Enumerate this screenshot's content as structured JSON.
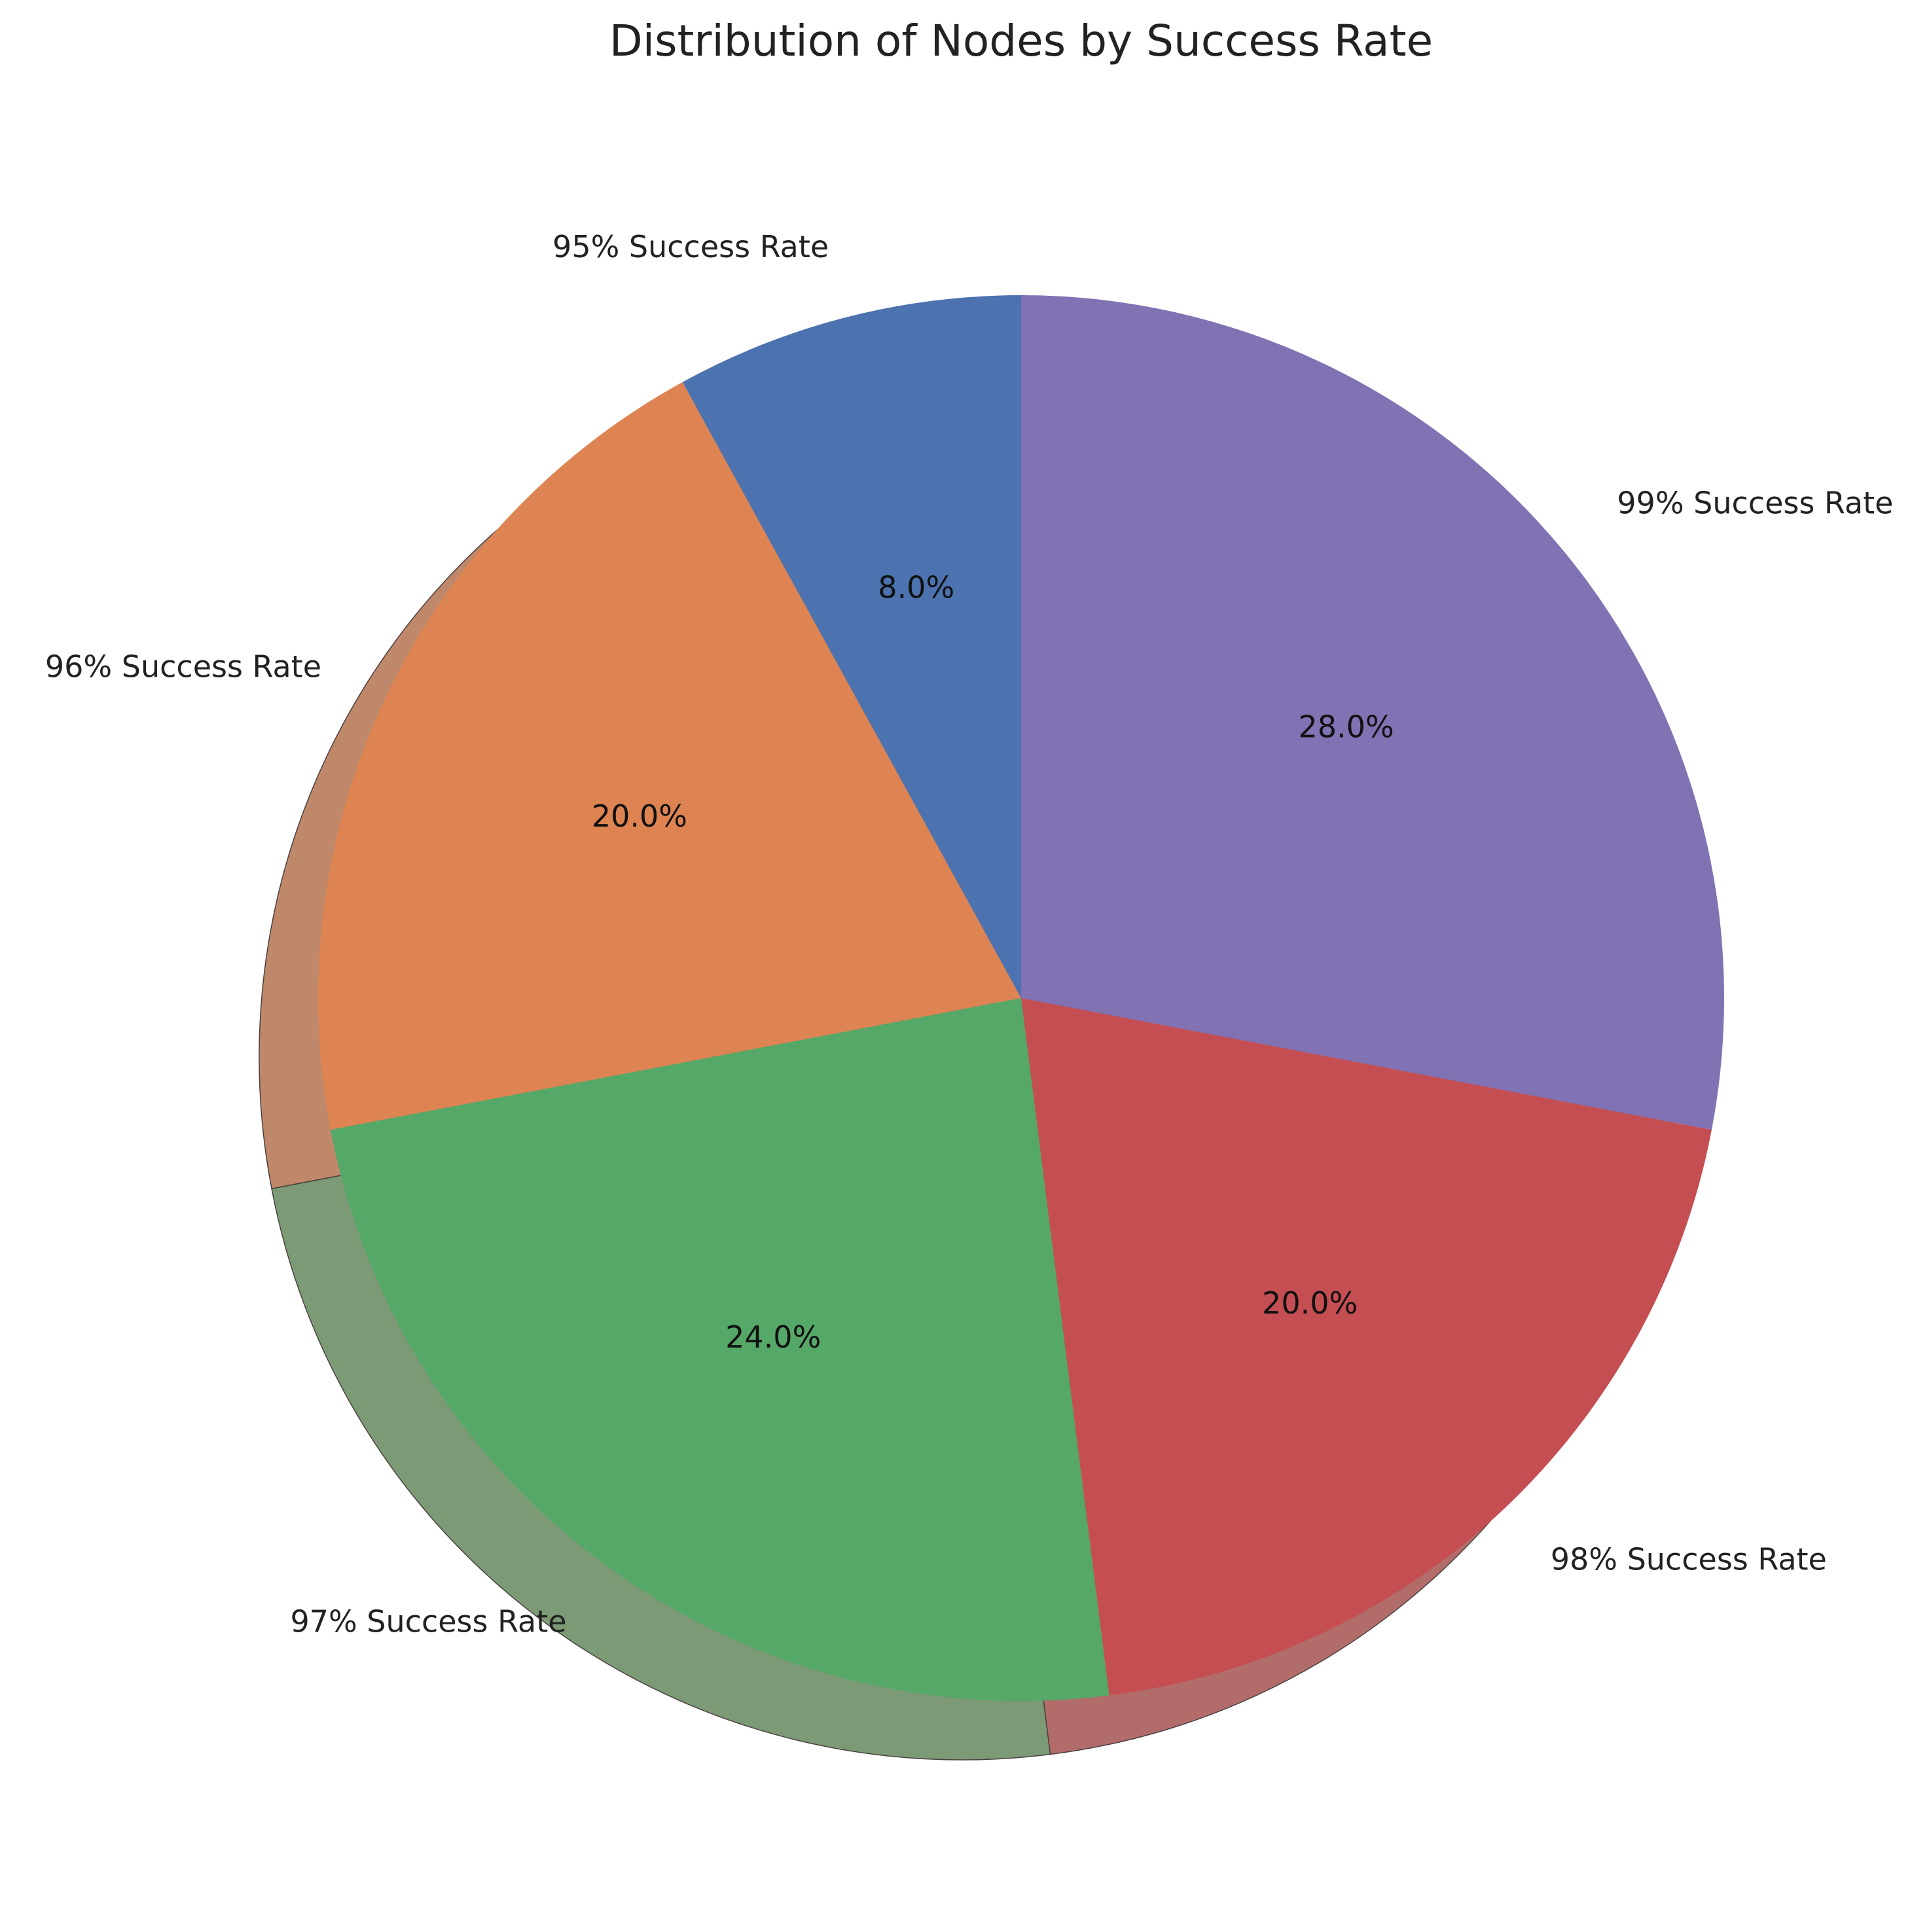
{
  "chart_data": {
    "type": "pie",
    "title": "Distribution of Nodes by Success Rate",
    "start_angle_deg": 90,
    "direction": "counterclockwise",
    "shadow": true,
    "slices": [
      {
        "label": "95% Success Rate",
        "value": 8.0,
        "pct_label": "8.0%",
        "color": "#4c72b0"
      },
      {
        "label": "96% Success Rate",
        "value": 20.0,
        "pct_label": "20.0%",
        "color": "#dd8452"
      },
      {
        "label": "97% Success Rate",
        "value": 24.0,
        "pct_label": "24.0%",
        "color": "#55a868"
      },
      {
        "label": "98% Success Rate",
        "value": 20.0,
        "pct_label": "20.0%",
        "color": "#c44e52"
      },
      {
        "label": "99% Success Rate",
        "value": 28.0,
        "pct_label": "28.0%",
        "color": "#8172b3"
      }
    ]
  }
}
